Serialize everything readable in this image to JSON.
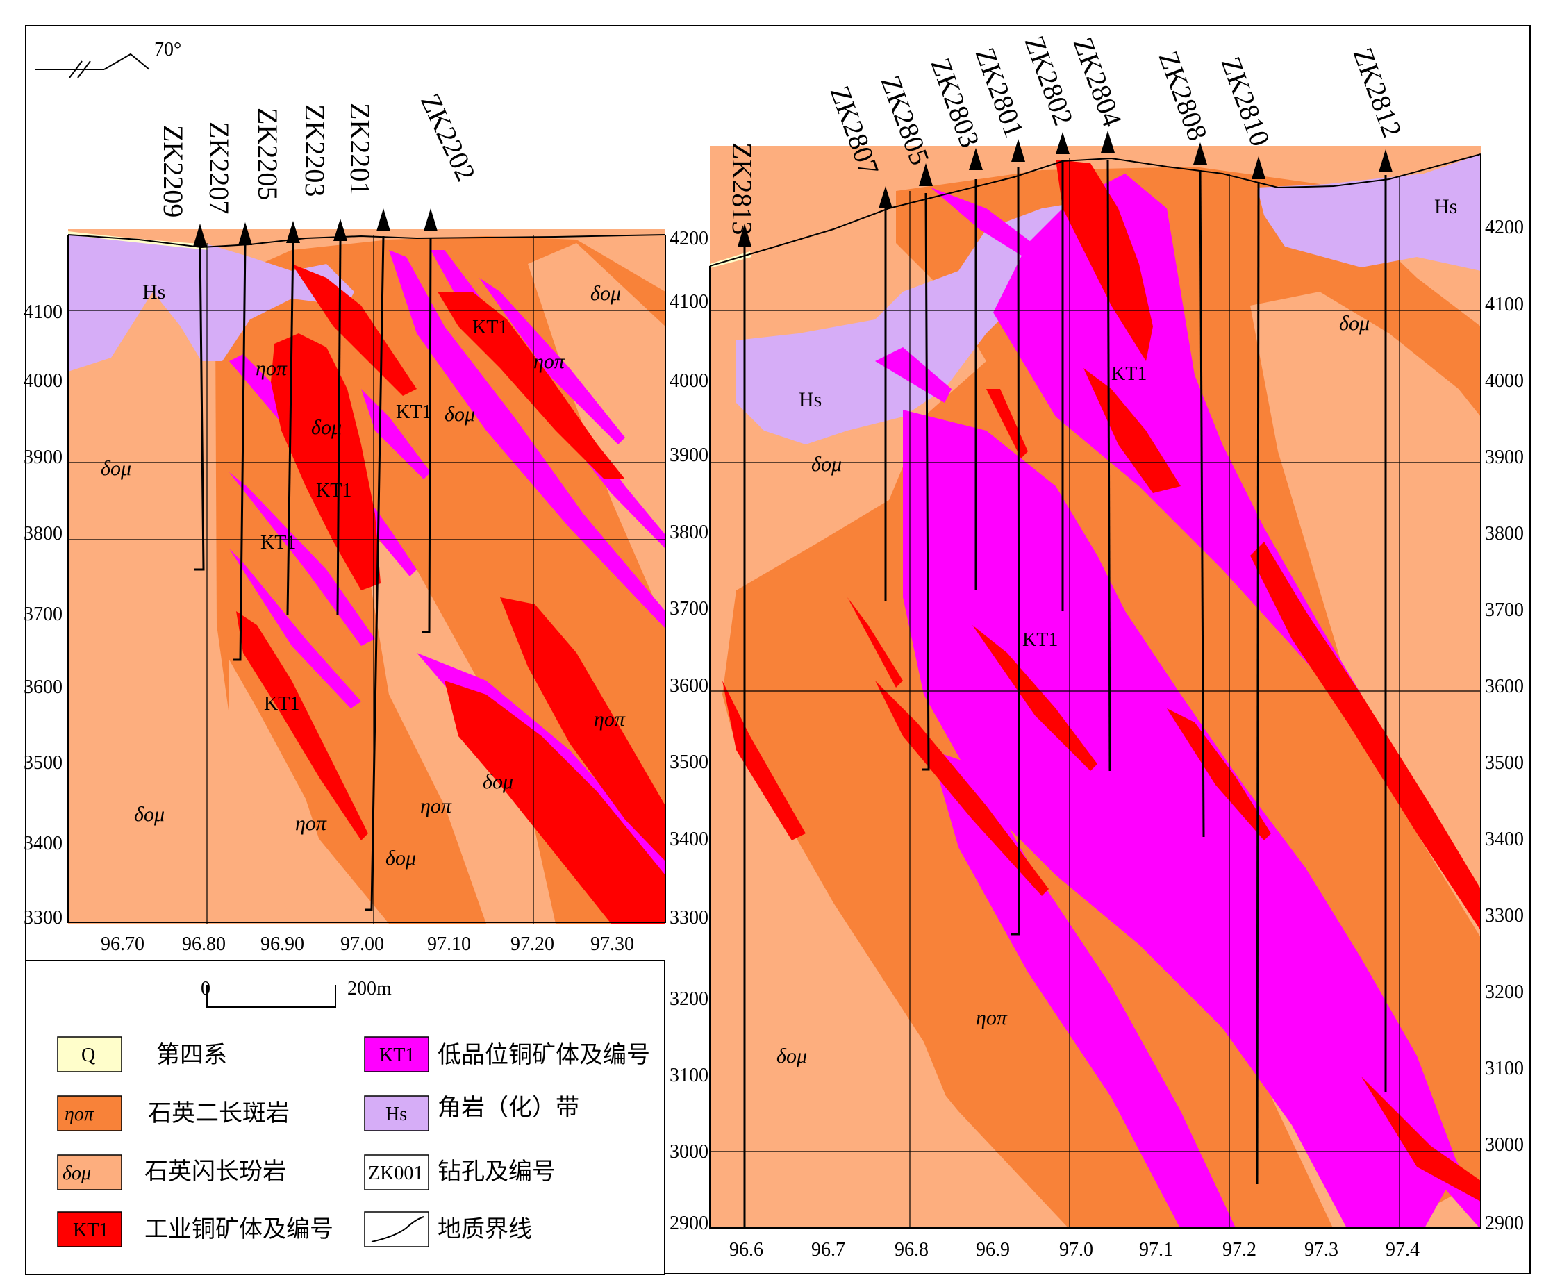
{
  "strike": {
    "label": "70°"
  },
  "colors": {
    "Q": "#fffecb",
    "porphyry": "#f88239",
    "diorite": "#fdae7e",
    "ore_industrial": "#ff0000",
    "ore_lowgrade": "#ff00ff",
    "hornfels": "#d6adf7"
  },
  "left_section": {
    "drillholes": [
      "ZK2209",
      "ZK2207",
      "ZK2205",
      "ZK2203",
      "ZK2201",
      "ZK2202"
    ],
    "elevation_ticks": [
      "4200",
      "4100",
      "4000",
      "3900",
      "3800",
      "3700",
      "3600",
      "3500",
      "3400",
      "3300"
    ],
    "x_ticks": [
      "96.70",
      "96.80",
      "96.90",
      "97.00",
      "97.10",
      "97.20",
      "97.30"
    ],
    "unit_labels": {
      "hs": "Hs",
      "d1": "δομ",
      "d2": "δομ",
      "d3": "δομ",
      "d4": "δομ",
      "d5": "δομ",
      "d6": "δομ",
      "e1": "ηοπ",
      "e2": "ηοπ",
      "e3": "ηοπ",
      "e4": "ηοπ",
      "e5": "ηοπ"
    },
    "ore_labels": [
      "KT1",
      "KT1",
      "KT1",
      "KT1",
      "KT1"
    ]
  },
  "right_section": {
    "drillholes": [
      "ZK2813",
      "ZK2807",
      "ZK2805",
      "ZK2803",
      "ZK2801",
      "ZK2802",
      "ZK2804",
      "ZK2808",
      "ZK2810",
      "ZK2812"
    ],
    "elevation_ticks": [
      "4200",
      "4100",
      "4000",
      "3900",
      "3800",
      "3700",
      "3600",
      "3500",
      "3400",
      "3300",
      "3200",
      "3100",
      "3000",
      "2900"
    ],
    "x_ticks": [
      "96.6",
      "96.7",
      "96.8",
      "96.9",
      "97.0",
      "97.1",
      "97.2",
      "97.3",
      "97.4"
    ],
    "unit_labels": {
      "hs1": "Hs",
      "hs2": "Hs",
      "d1": "δομ",
      "d2": "δομ",
      "d3": "δομ",
      "e1": "ηοπ"
    },
    "ore_labels": [
      "KT1",
      "KT1"
    ]
  },
  "scale_bar": {
    "start": "0",
    "end": "200m"
  },
  "legend": [
    {
      "symbol": "Q",
      "label": "第四系"
    },
    {
      "symbol": "ηοπ",
      "label": "石英二长斑岩"
    },
    {
      "symbol": "δομ",
      "label": "石英闪长玢岩"
    },
    {
      "symbol": "KT1",
      "label": "工业铜矿体及编号"
    },
    {
      "symbol": "KT1",
      "label": "低品位铜矿体及编号"
    },
    {
      "symbol": "Hs",
      "label": "角岩（化）带"
    },
    {
      "symbol": "ZK001",
      "label": "钻孔及编号"
    },
    {
      "symbol": "",
      "label": "地质界线"
    }
  ]
}
